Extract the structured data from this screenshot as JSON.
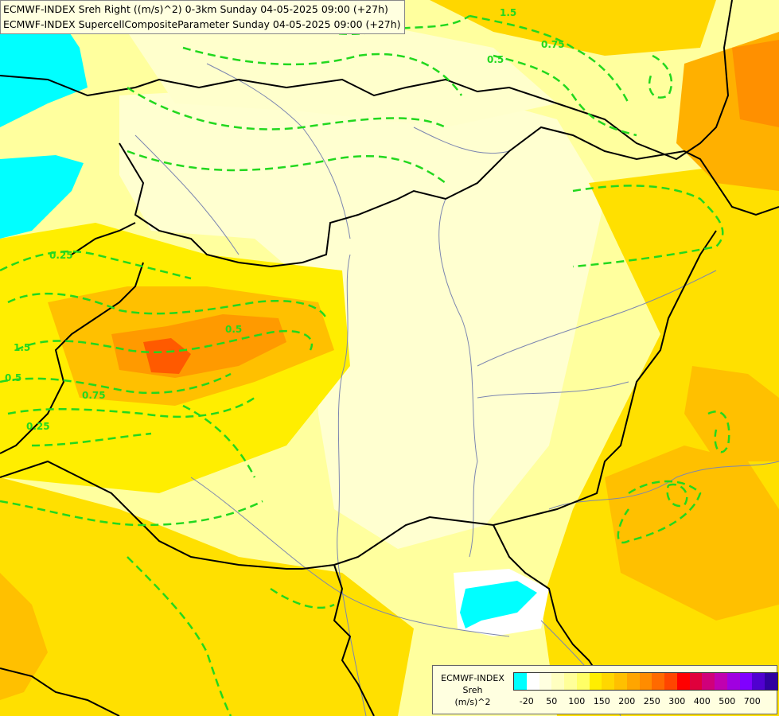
{
  "titles": {
    "line1": "ECMWF-INDEX Sreh Right ((m/s)^2) 0-3km Sunday 04-05-2025 09:00 (+27h)",
    "line2": "ECMWF-INDEX SupercellCompositeParameter Sunday 04-05-2025 09:00 (+27h)"
  },
  "legend": {
    "model": "ECMWF-INDEX",
    "variable": "Sreh",
    "unit": "(m/s)^2",
    "colors": [
      "#00ffff",
      "#ffffff",
      "#ffffe0",
      "#ffffc0",
      "#ffff99",
      "#ffff66",
      "#ffee00",
      "#ffd700",
      "#ffc000",
      "#ffa500",
      "#ff8c00",
      "#ff6a00",
      "#ff4500",
      "#ff0000",
      "#e0003c",
      "#d0007a",
      "#c000b0",
      "#a000e0",
      "#8000ff",
      "#5000d0",
      "#3000a0"
    ],
    "ticks": [
      {
        "label": "-20",
        "pos": 1
      },
      {
        "label": "50",
        "pos": 3
      },
      {
        "label": "100",
        "pos": 5
      },
      {
        "label": "150",
        "pos": 7
      },
      {
        "label": "200",
        "pos": 9
      },
      {
        "label": "250",
        "pos": 11
      },
      {
        "label": "300",
        "pos": 13
      },
      {
        "label": "400",
        "pos": 15
      },
      {
        "label": "500",
        "pos": 17
      },
      {
        "label": "700",
        "pos": 19
      }
    ]
  },
  "contour_labels": [
    {
      "text": "1.5"
    },
    {
      "text": "0.5"
    },
    {
      "text": "0.75"
    },
    {
      "text": "0.25"
    },
    {
      "text": "1.5"
    },
    {
      "text": "0.5"
    },
    {
      "text": "0.75"
    },
    {
      "text": "0.25"
    },
    {
      "text": "0.5"
    }
  ],
  "layers": {
    "shading": "SREH 0-3km shaded",
    "contours": "supercell composite parameter dashed green",
    "borders": "country borders black",
    "rivers": "rivers grey-blue"
  }
}
